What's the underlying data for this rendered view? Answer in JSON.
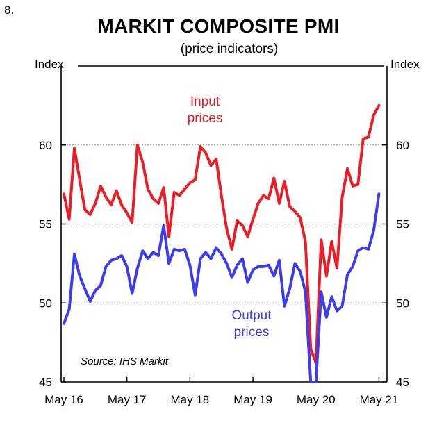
{
  "figure_number": "8.",
  "chart_data": {
    "type": "line",
    "title": "MARKIT COMPOSITE PMI",
    "subtitle": "(price indicators)",
    "ylabel_left": "Index",
    "ylabel_right": "Index",
    "ylim": [
      45,
      65
    ],
    "yticks": [
      45,
      50,
      55,
      60
    ],
    "xlim": [
      0,
      61
    ],
    "xticks": [
      {
        "pos": 0,
        "label": "May 16"
      },
      {
        "pos": 12,
        "label": "May 17"
      },
      {
        "pos": 24,
        "label": "May 18"
      },
      {
        "pos": 36,
        "label": "May 19"
      },
      {
        "pos": 48,
        "label": "May 20"
      },
      {
        "pos": 60,
        "label": "May 21"
      }
    ],
    "grid": "horizontal dotted",
    "source": "Source: IHS Markit",
    "series": [
      {
        "name": "Input prices",
        "label_lines": [
          "Input",
          "prices"
        ],
        "color": "#ee1c25",
        "values": [
          56.9,
          55.3,
          59.8,
          57.8,
          55.9,
          55.6,
          56.3,
          57.4,
          56.7,
          56.2,
          57.1,
          56.2,
          55.7,
          55.1,
          60.0,
          58.9,
          57.2,
          56.6,
          56.3,
          57.3,
          54.2,
          57.0,
          56.8,
          57.2,
          57.6,
          57.8,
          59.9,
          59.5,
          58.7,
          59.1,
          56.8,
          54.7,
          53.4,
          55.2,
          54.9,
          54.2,
          55.3,
          56.3,
          56.8,
          56.6,
          57.9,
          56.3,
          57.7,
          56.1,
          55.8,
          55.4,
          53.9,
          47.1,
          46.2,
          54.0,
          51.7,
          53.9,
          52.2,
          56.7,
          58.5,
          57.4,
          57.5,
          60.4,
          60.5,
          61.9,
          62.5
        ]
      },
      {
        "name": "Output prices",
        "label_lines": [
          "Output",
          "prices"
        ],
        "color": "#3c3cf0",
        "values": [
          48.7,
          49.6,
          53.1,
          51.7,
          50.9,
          50.1,
          50.8,
          51.1,
          52.3,
          52.7,
          52.8,
          53.0,
          52.3,
          50.6,
          52.2,
          53.3,
          52.8,
          53.2,
          53.0,
          54.9,
          52.5,
          53.4,
          53.3,
          53.4,
          52.4,
          50.5,
          52.8,
          53.2,
          52.8,
          53.5,
          53.1,
          52.5,
          51.6,
          52.4,
          52.8,
          51.3,
          52.1,
          52.3,
          52.3,
          52.4,
          51.7,
          52.7,
          49.8,
          50.9,
          52.5,
          52.0,
          50.7,
          45.0,
          45.0,
          50.7,
          49.1,
          50.4,
          49.5,
          49.8,
          51.8,
          52.3,
          53.3,
          53.5,
          53.4,
          54.6,
          56.9
        ]
      }
    ]
  }
}
